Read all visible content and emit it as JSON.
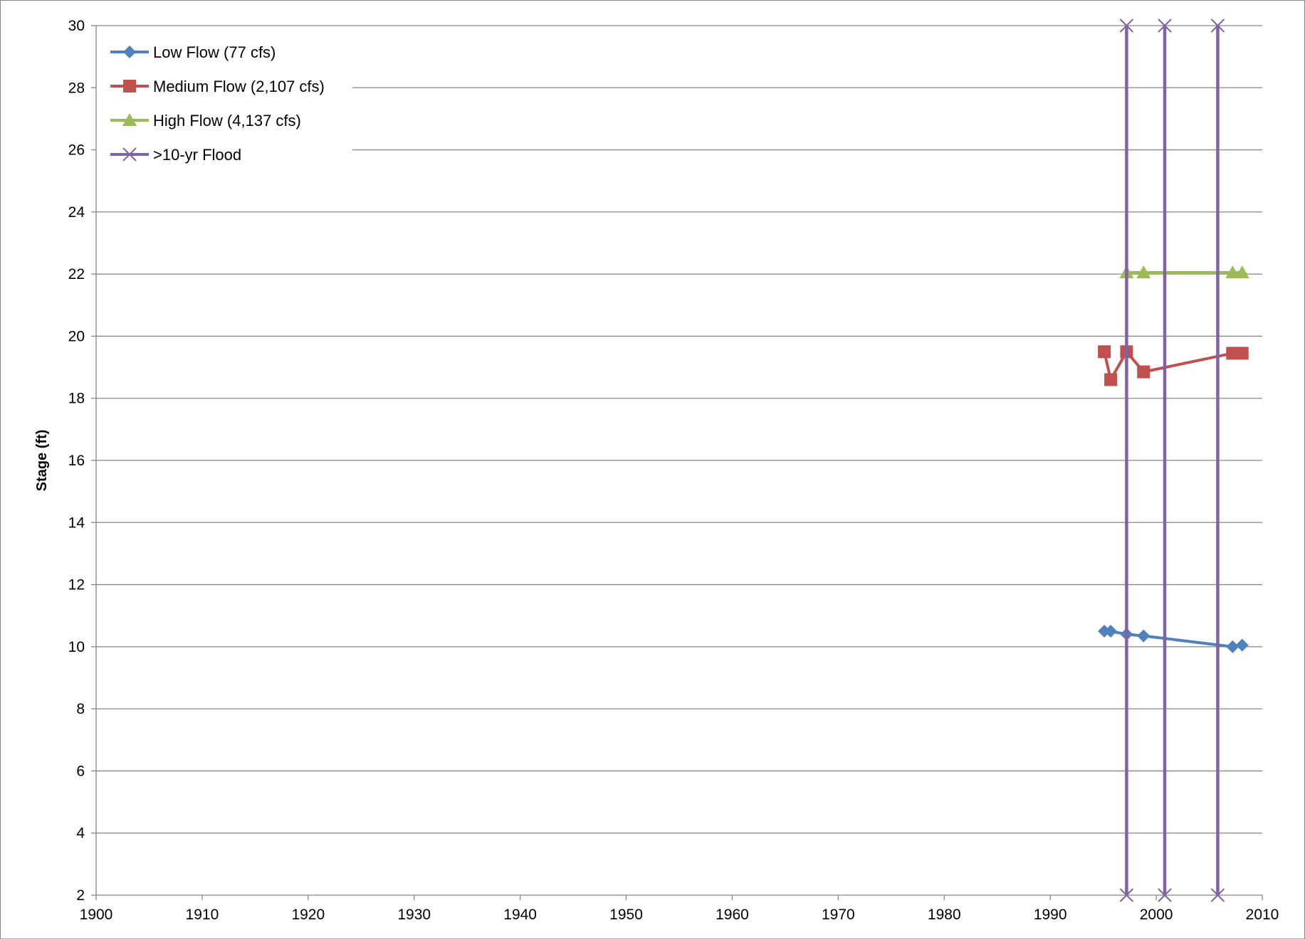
{
  "chart_data": {
    "type": "line",
    "title": "",
    "xlabel": "",
    "ylabel": "Stage (ft)",
    "xlim": [
      1900,
      2010
    ],
    "ylim": [
      2,
      30
    ],
    "x_ticks": [
      "1900",
      "1910",
      "1920",
      "1930",
      "1940",
      "1950",
      "1960",
      "1970",
      "1980",
      "1990",
      "2000",
      "2010"
    ],
    "y_ticks": [
      "2",
      "4",
      "6",
      "8",
      "10",
      "12",
      "14",
      "16",
      "18",
      "20",
      "22",
      "24",
      "26",
      "28",
      "30"
    ],
    "grid": "horizontal",
    "legend_position": "top-left",
    "series": [
      {
        "name": "Low Flow (77 cfs)",
        "color": "#4F81BD",
        "marker": "diamond",
        "points": [
          [
            1995.1,
            10.5
          ],
          [
            1995.7,
            10.5
          ],
          [
            1997.2,
            10.4
          ],
          [
            1998.8,
            10.35
          ],
          [
            2007.2,
            10.0
          ],
          [
            2008.1,
            10.05
          ]
        ]
      },
      {
        "name": "Medium Flow (2,107 cfs)",
        "color": "#C0504D",
        "marker": "square",
        "points": [
          [
            1995.1,
            19.5
          ],
          [
            1995.7,
            18.6
          ],
          [
            1997.2,
            19.5
          ],
          [
            1998.8,
            18.85
          ],
          [
            2007.2,
            19.45
          ],
          [
            2008.1,
            19.45
          ]
        ]
      },
      {
        "name": "High Flow (4,137 cfs)",
        "color": "#9BBB59",
        "marker": "triangle",
        "points": [
          [
            1997.2,
            22.05
          ],
          [
            1998.8,
            22.05
          ],
          [
            2007.2,
            22.05
          ],
          [
            2008.1,
            22.05
          ]
        ]
      },
      {
        "name": ">10-yr Flood",
        "color": "#8064A2",
        "marker": "x",
        "segments": [
          [
            [
              1997.2,
              2
            ],
            [
              1997.2,
              30
            ]
          ],
          [
            [
              2000.8,
              2
            ],
            [
              2000.8,
              30
            ]
          ],
          [
            [
              2005.8,
              2
            ],
            [
              2005.8,
              30
            ]
          ]
        ]
      }
    ]
  }
}
